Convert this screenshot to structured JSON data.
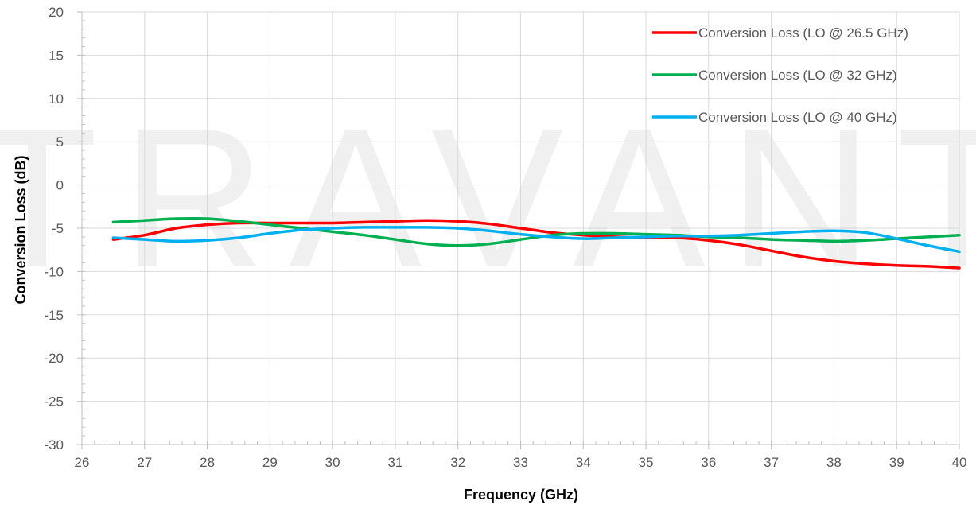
{
  "chart_data": {
    "type": "line",
    "title": "",
    "xlabel": "Frequency (GHz)",
    "ylabel": "Conversion Loss (dB)",
    "xlim": [
      26,
      40
    ],
    "ylim": [
      -30,
      20
    ],
    "x_ticks": [
      "26",
      "27",
      "28",
      "29",
      "30",
      "31",
      "32",
      "33",
      "34",
      "35",
      "36",
      "37",
      "38",
      "39",
      "40"
    ],
    "y_ticks": [
      "20",
      "15",
      "10",
      "5",
      "0",
      "-5",
      "-10",
      "-15",
      "-20",
      "-25",
      "-30"
    ],
    "grid": true,
    "legend_position": "top-right",
    "watermark": "TRAVANT",
    "series": [
      {
        "name": "Conversion Loss (LO @ 26.5 GHz)",
        "color": "#ff0000",
        "x": [
          26.5,
          27,
          27.5,
          28,
          28.5,
          29,
          29.5,
          30,
          30.5,
          31,
          31.5,
          32,
          32.5,
          33,
          33.5,
          34,
          34.5,
          35,
          35.5,
          36,
          36.5,
          37,
          37.5,
          38,
          38.5,
          39,
          39.5,
          40
        ],
        "y": [
          -6.3,
          -5.8,
          -5.0,
          -4.6,
          -4.4,
          -4.4,
          -4.4,
          -4.4,
          -4.3,
          -4.2,
          -4.1,
          -4.2,
          -4.5,
          -5.0,
          -5.5,
          -5.8,
          -6.0,
          -6.1,
          -6.1,
          -6.4,
          -6.9,
          -7.6,
          -8.3,
          -8.8,
          -9.1,
          -9.3,
          -9.4,
          -9.6
        ]
      },
      {
        "name": "Conversion Loss (LO @ 32 GHz)",
        "color": "#00b050",
        "x": [
          26.5,
          27,
          27.5,
          28,
          28.5,
          29,
          29.5,
          30,
          30.5,
          31,
          31.5,
          32,
          32.5,
          33,
          33.5,
          34,
          34.5,
          35,
          35.5,
          36,
          36.5,
          37,
          37.5,
          38,
          38.5,
          39,
          39.5,
          40
        ],
        "y": [
          -4.3,
          -4.1,
          -3.9,
          -3.9,
          -4.2,
          -4.6,
          -5.0,
          -5.4,
          -5.8,
          -6.3,
          -6.8,
          -7.0,
          -6.8,
          -6.3,
          -5.8,
          -5.6,
          -5.6,
          -5.7,
          -5.8,
          -6.0,
          -6.1,
          -6.3,
          -6.4,
          -6.5,
          -6.4,
          -6.2,
          -6.0,
          -5.8
        ]
      },
      {
        "name": "Conversion Loss (LO @ 40 GHz)",
        "color": "#00b0f0",
        "x": [
          26.5,
          27,
          27.5,
          28,
          28.5,
          29,
          29.5,
          30,
          30.5,
          31,
          31.5,
          32,
          32.5,
          33,
          33.5,
          34,
          34.5,
          35,
          35.5,
          36,
          36.5,
          37,
          37.5,
          38,
          38.5,
          39,
          39.5,
          40
        ],
        "y": [
          -6.1,
          -6.3,
          -6.5,
          -6.4,
          -6.1,
          -5.6,
          -5.2,
          -5.0,
          -4.9,
          -4.9,
          -4.9,
          -5.0,
          -5.3,
          -5.7,
          -6.0,
          -6.2,
          -6.1,
          -6.0,
          -5.9,
          -5.9,
          -5.8,
          -5.6,
          -5.4,
          -5.3,
          -5.5,
          -6.2,
          -7.0,
          -7.7
        ]
      }
    ]
  }
}
